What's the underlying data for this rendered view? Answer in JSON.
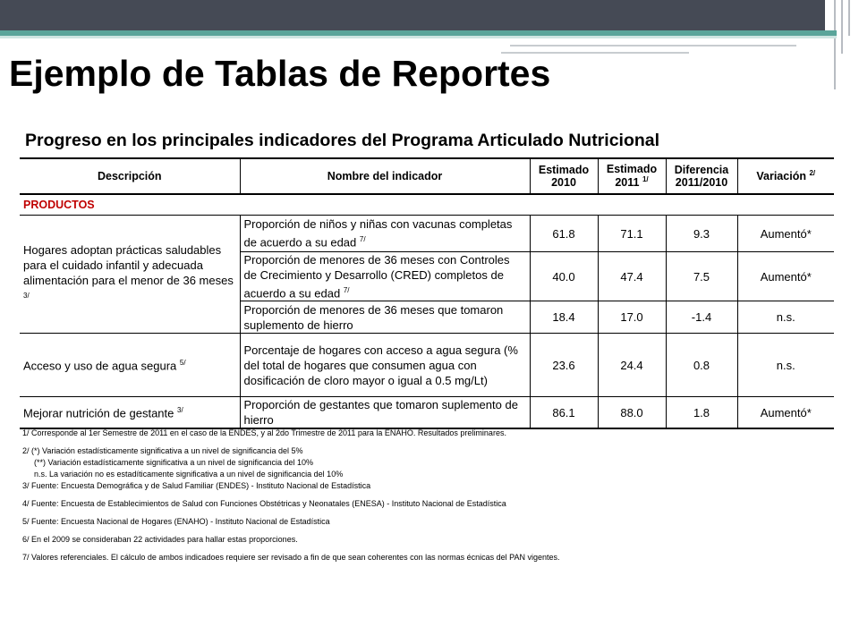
{
  "title": "Ejemplo de Tablas de Reportes",
  "subtitle": "Progreso en los principales indicadores del Programa Articulado Nutricional",
  "headers": {
    "descripcion": "Descripción",
    "indicador": "Nombre del indicador",
    "est2010_a": "Estimado",
    "est2010_b": "2010",
    "est2011_a": "Estimado",
    "est2011_b": "2011",
    "est2011_sup": "1/",
    "dif_a": "Diferencia",
    "dif_b": "2011/2010",
    "variacion": "Variación",
    "variacion_sup": "2/"
  },
  "section": "PRODUCTOS",
  "groups": [
    {
      "description": "Hogares adoptan prácticas saludables para el cuidado infantil y adecuada alimentación para el menor de 36 meses",
      "sup": "3/"
    },
    {
      "description": "Acceso y uso de agua segura",
      "sup": "5/"
    },
    {
      "description": "Mejorar nutrición de gestante",
      "sup": "3/"
    }
  ],
  "rows": [
    {
      "indicator": "Proporción de niños y niñas con vacunas completas de acuerdo a su edad",
      "sup": "7/",
      "e2010": "61.8",
      "e2011": "71.1",
      "diff": "9.3",
      "var": "Aumentó*"
    },
    {
      "indicator": "Proporción de menores de 36 meses con Controles de Crecimiento y Desarrollo (CRED) completos de acuerdo a su edad",
      "sup": "7/",
      "e2010": "40.0",
      "e2011": "47.4",
      "diff": "7.5",
      "var": "Aumentó*"
    },
    {
      "indicator": "Proporción de menores de 36 meses que tomaron suplemento de hierro",
      "sup": "",
      "e2010": "18.4",
      "e2011": "17.0",
      "diff": "-1.4",
      "var": "n.s."
    },
    {
      "indicator": "Porcentaje de hogares con acceso a agua segura (% del total de hogares que consumen agua con dosificación de cloro mayor o igual a 0.5 mg/Lt)",
      "sup": "",
      "e2010": "23.6",
      "e2011": "24.4",
      "diff": "0.8",
      "var": "n.s."
    },
    {
      "indicator": "Proporción de gestantes que tomaron suplemento de hierro",
      "sup": "",
      "e2010": "86.1",
      "e2011": "88.0",
      "diff": "1.8",
      "var": "Aumentó*"
    }
  ],
  "notes": {
    "n1": "1/ Corresponde al 1er Semestre de 2011 en el caso de la ENDES, y al 2do Trimestre de 2011 para la ENAHO. Resultados preliminares.",
    "n2a": "2/ (*) Variación estadísticamente significativa a un nivel de significancia del 5%",
    "n2b": "(**) Variación estadísticamente significativa a un nivel de significancia del 10%",
    "n2c": "n.s. La variación no es estadíticamente significativa a un nivel de significancia del 10%",
    "n3": "3/ Fuente: Encuesta Demográfica y de Salud Familiar (ENDES) - Instituto Nacional de Estadística",
    "n4": "4/ Fuente: Encuesta de Establecimientos de Salud con Funciones Obstétricas y Neonatales (ENESA) - Instituto Nacional de Estadística",
    "n5": "5/ Fuente: Encuesta Nacional de Hogares (ENAHO) - Instituto Nacional de Estadística",
    "n6": "6/ En el 2009 se consideraban 22 actividades para hallar estas proporciones.",
    "n7": "7/ Valores referenciales. El cálculo de ambos indicadoes requiere ser revisado a fin de que sean coherentes con las normas écnicas del PAN vigentes."
  },
  "colors": {
    "topbar": "#454a55",
    "accent": "#5aa59a",
    "products": "#c00000"
  }
}
